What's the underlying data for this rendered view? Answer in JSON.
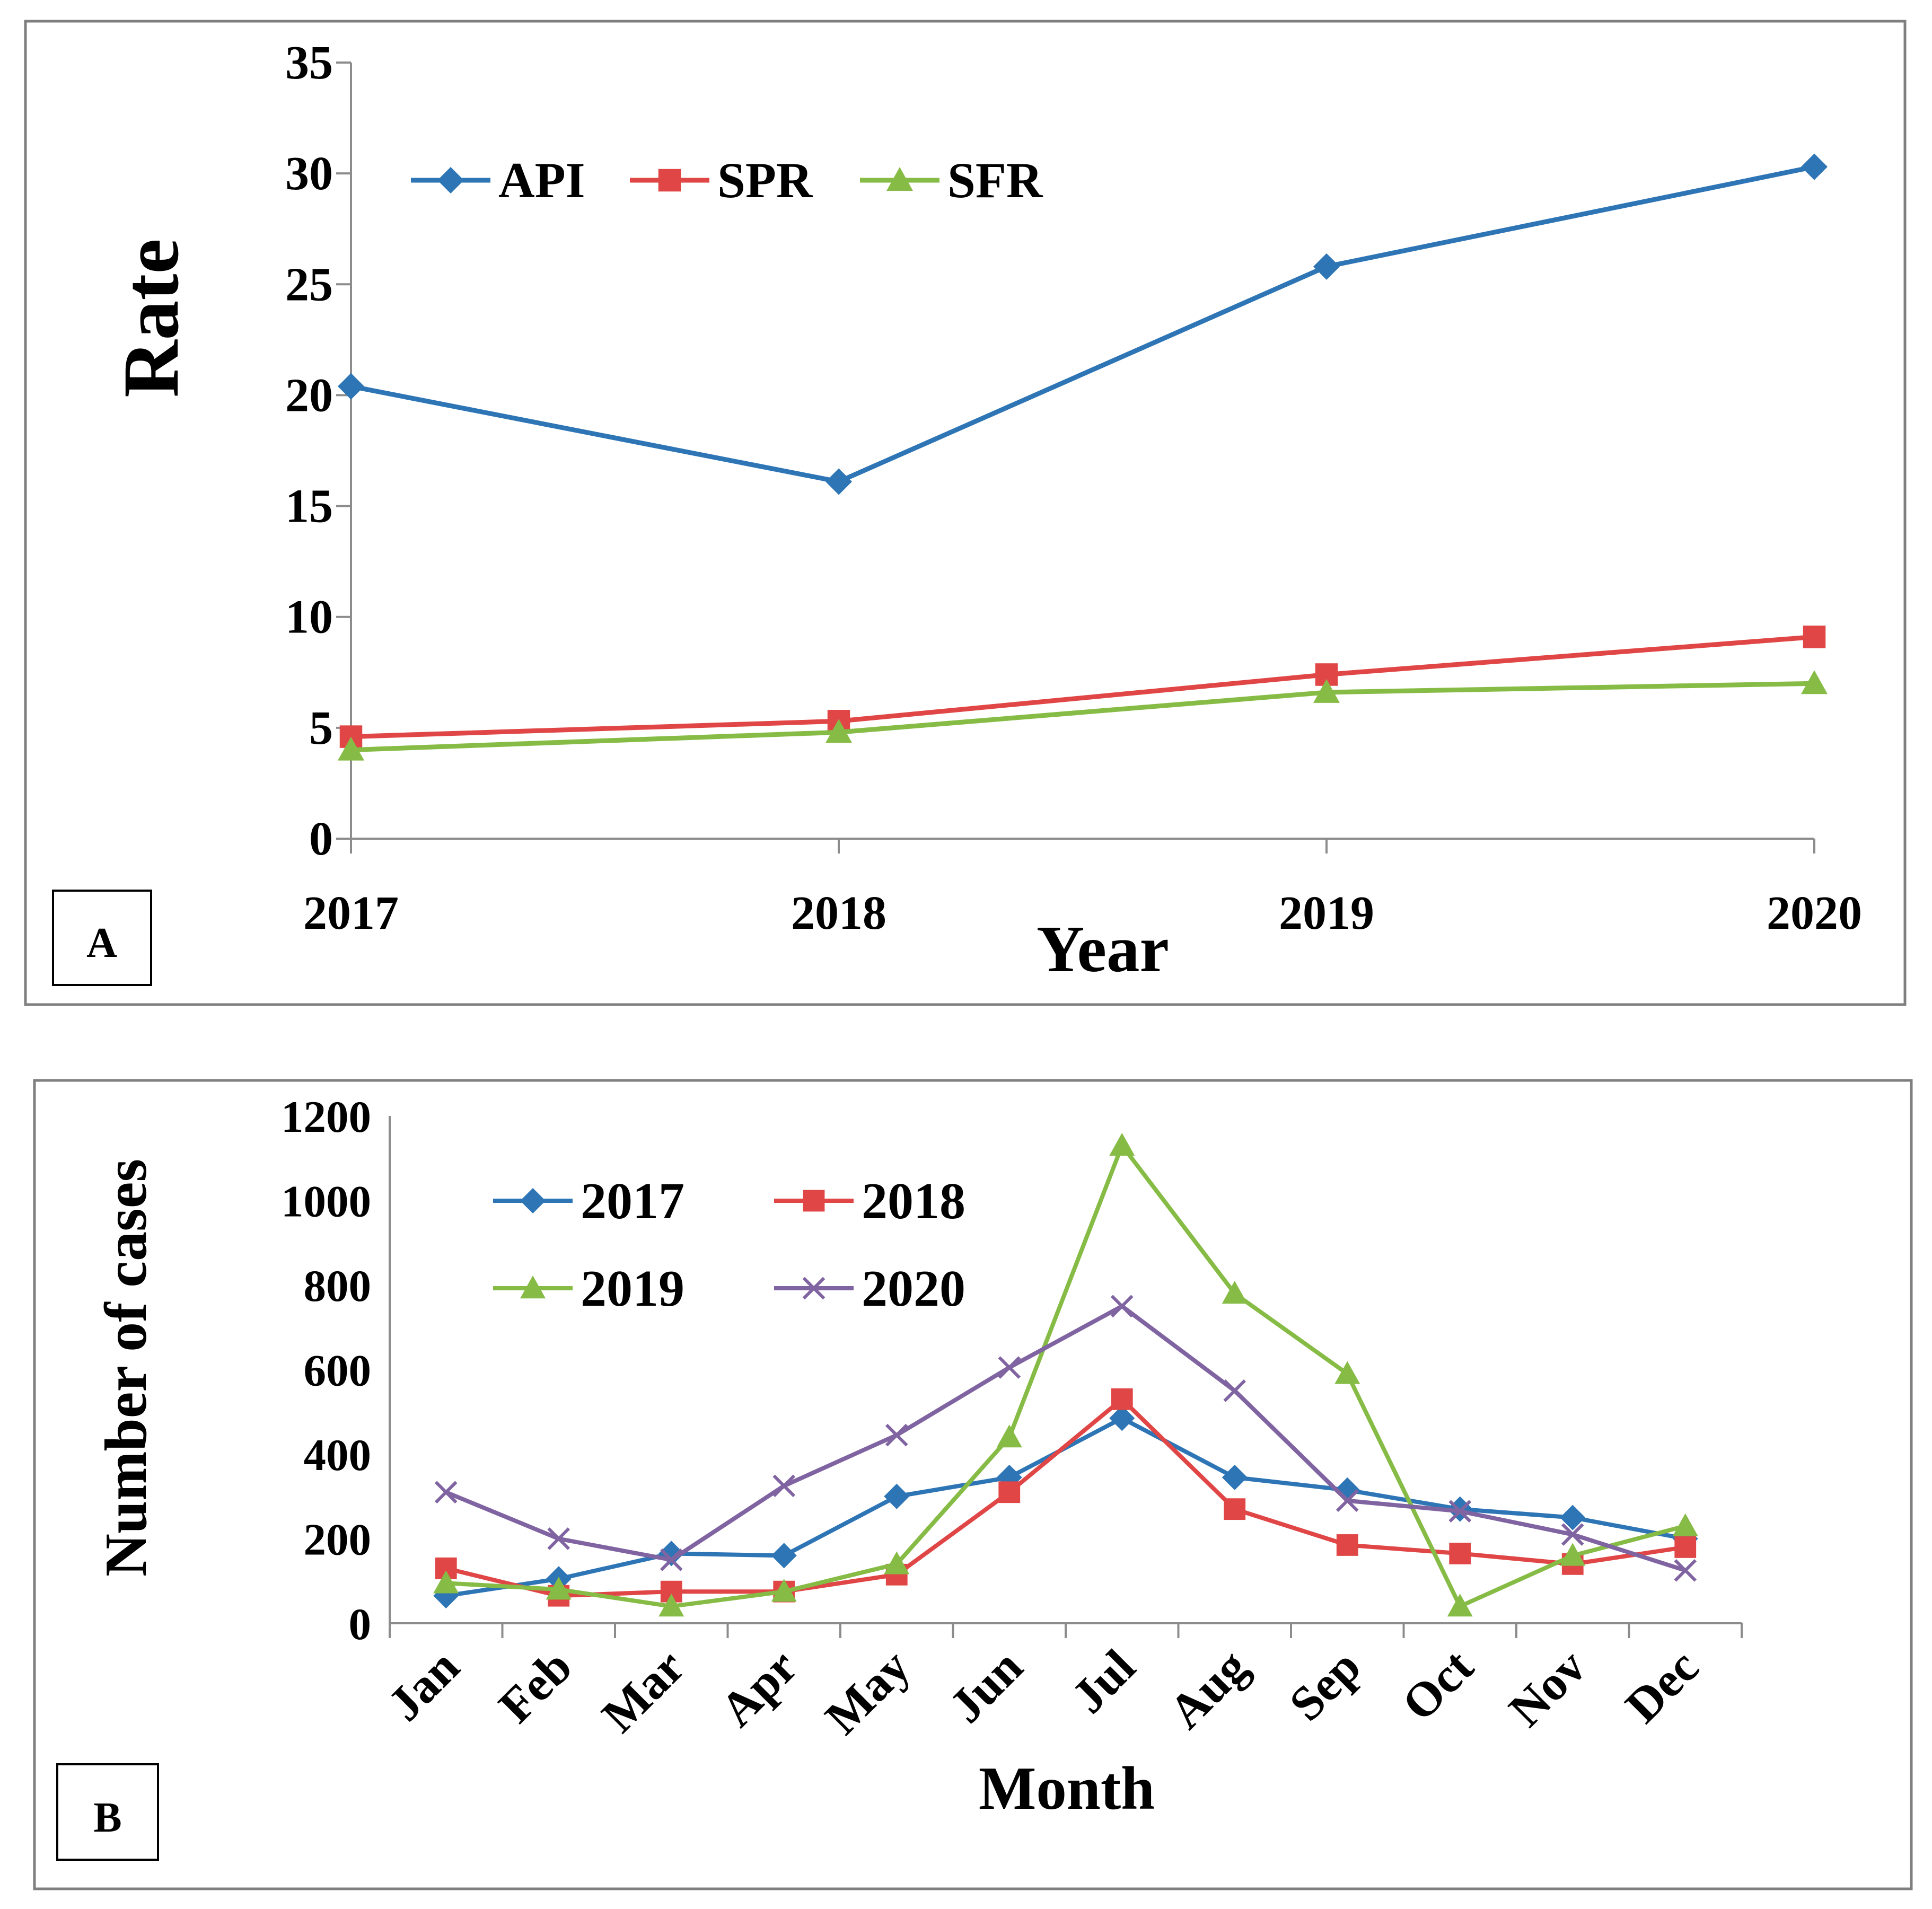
{
  "chart_data": [
    {
      "type": "line",
      "panel_label": "A",
      "xlabel": "Year",
      "ylabel": "Rate",
      "ylim": [
        0,
        35
      ],
      "yticks": [
        "0",
        "5",
        "10",
        "15",
        "20",
        "25",
        "30",
        "35"
      ],
      "categories": [
        "2017",
        "2018",
        "2019",
        "2020"
      ],
      "legend_position": "top-left",
      "grid": false,
      "series": [
        {
          "name": "API",
          "color": "#2e75b6",
          "marker": "diamond",
          "values": [
            20.4,
            16.1,
            25.8,
            30.3
          ]
        },
        {
          "name": "SPR",
          "color": "#e04646",
          "marker": "square",
          "values": [
            4.6,
            5.3,
            7.4,
            9.1
          ]
        },
        {
          "name": "SFR",
          "color": "#86bc45",
          "marker": "triangle",
          "values": [
            4.0,
            4.8,
            6.6,
            7.0
          ]
        }
      ]
    },
    {
      "type": "line",
      "panel_label": "B",
      "xlabel": "Month",
      "ylabel": "Number of cases",
      "ylim": [
        0,
        1200
      ],
      "yticks": [
        "0",
        "200",
        "400",
        "600",
        "800",
        "1000",
        "1200"
      ],
      "categories": [
        "Jan",
        "Feb",
        "Mar",
        "Apr",
        "May",
        "Jun",
        "Jul",
        "Aug",
        "Sep",
        "Oct",
        "Nov",
        "Dec"
      ],
      "legend_position": "top-left",
      "grid": false,
      "series": [
        {
          "name": "2017",
          "color": "#2e75b6",
          "marker": "diamond",
          "values": [
            65,
            105,
            165,
            160,
            300,
            345,
            485,
            345,
            315,
            270,
            250,
            200
          ]
        },
        {
          "name": "2018",
          "color": "#e04646",
          "marker": "square",
          "values": [
            130,
            65,
            75,
            75,
            115,
            310,
            530,
            270,
            185,
            165,
            140,
            180
          ]
        },
        {
          "name": "2019",
          "color": "#86bc45",
          "marker": "triangle",
          "values": [
            95,
            80,
            40,
            75,
            140,
            440,
            1130,
            780,
            590,
            40,
            160,
            230
          ]
        },
        {
          "name": "2020",
          "color": "#8064a2",
          "marker": "x",
          "values": [
            310,
            200,
            150,
            325,
            445,
            605,
            750,
            550,
            290,
            265,
            210,
            125
          ]
        }
      ]
    }
  ]
}
